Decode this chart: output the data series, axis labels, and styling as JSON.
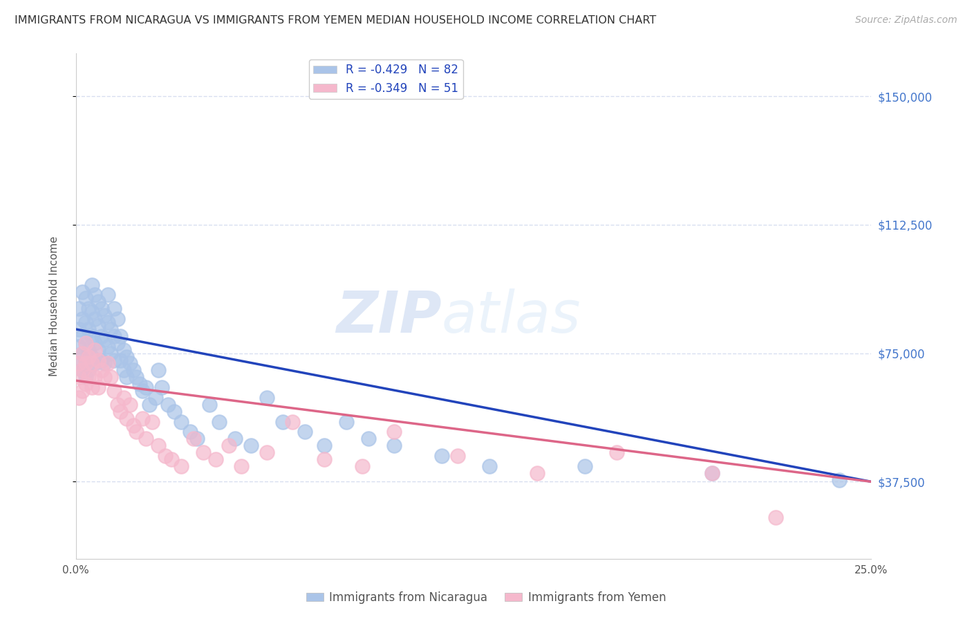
{
  "title": "IMMIGRANTS FROM NICARAGUA VS IMMIGRANTS FROM YEMEN MEDIAN HOUSEHOLD INCOME CORRELATION CHART",
  "source": "Source: ZipAtlas.com",
  "ylabel": "Median Household Income",
  "xlim": [
    0.0,
    0.25
  ],
  "ylim": [
    15000,
    162500
  ],
  "yticks": [
    37500,
    75000,
    112500,
    150000
  ],
  "ytick_labels": [
    "$37,500",
    "$75,000",
    "$112,500",
    "$150,000"
  ],
  "xticks": [
    0.0,
    0.05,
    0.1,
    0.15,
    0.2,
    0.25
  ],
  "xtick_labels": [
    "0.0%",
    "",
    "",
    "",
    "",
    "25.0%"
  ],
  "nicaragua_R": -0.429,
  "nicaragua_N": 82,
  "yemen_R": -0.349,
  "yemen_N": 51,
  "nicaragua_color": "#aac4e8",
  "yemen_color": "#f5b8cc",
  "nicaragua_line_color": "#2244bb",
  "yemen_line_color": "#dd6688",
  "nicaragua_line_x0": 0.0,
  "nicaragua_line_y0": 82000,
  "nicaragua_line_x1": 0.25,
  "nicaragua_line_y1": 37500,
  "yemen_line_x0": 0.0,
  "yemen_line_y0": 67000,
  "yemen_line_x1": 0.25,
  "yemen_line_y1": 37500,
  "nicaragua_x": [
    0.001,
    0.001,
    0.001,
    0.001,
    0.002,
    0.002,
    0.002,
    0.002,
    0.002,
    0.003,
    0.003,
    0.003,
    0.003,
    0.003,
    0.004,
    0.004,
    0.004,
    0.004,
    0.005,
    0.005,
    0.005,
    0.005,
    0.006,
    0.006,
    0.006,
    0.006,
    0.007,
    0.007,
    0.007,
    0.008,
    0.008,
    0.008,
    0.009,
    0.009,
    0.009,
    0.01,
    0.01,
    0.01,
    0.011,
    0.011,
    0.012,
    0.012,
    0.012,
    0.013,
    0.013,
    0.014,
    0.014,
    0.015,
    0.015,
    0.016,
    0.016,
    0.017,
    0.018,
    0.019,
    0.02,
    0.021,
    0.022,
    0.023,
    0.025,
    0.026,
    0.027,
    0.029,
    0.031,
    0.033,
    0.036,
    0.038,
    0.042,
    0.045,
    0.05,
    0.055,
    0.06,
    0.065,
    0.072,
    0.078,
    0.085,
    0.092,
    0.1,
    0.115,
    0.13,
    0.16,
    0.2,
    0.24
  ],
  "nicaragua_y": [
    88000,
    82000,
    77000,
    72000,
    93000,
    85000,
    80000,
    75000,
    70000,
    91000,
    84000,
    78000,
    73000,
    68000,
    88000,
    82000,
    76000,
    70000,
    95000,
    87000,
    80000,
    74000,
    92000,
    85000,
    78000,
    72000,
    90000,
    83000,
    76000,
    88000,
    80000,
    73000,
    86000,
    79000,
    72000,
    92000,
    84000,
    77000,
    82000,
    75000,
    88000,
    80000,
    73000,
    85000,
    78000,
    80000,
    73000,
    76000,
    70000,
    74000,
    68000,
    72000,
    70000,
    68000,
    66000,
    64000,
    65000,
    60000,
    62000,
    70000,
    65000,
    60000,
    58000,
    55000,
    52000,
    50000,
    60000,
    55000,
    50000,
    48000,
    62000,
    55000,
    52000,
    48000,
    55000,
    50000,
    48000,
    45000,
    42000,
    42000,
    40000,
    38000
  ],
  "yemen_x": [
    0.001,
    0.001,
    0.001,
    0.002,
    0.002,
    0.002,
    0.003,
    0.003,
    0.003,
    0.004,
    0.004,
    0.005,
    0.005,
    0.006,
    0.006,
    0.007,
    0.007,
    0.008,
    0.009,
    0.01,
    0.011,
    0.012,
    0.013,
    0.014,
    0.015,
    0.016,
    0.017,
    0.018,
    0.019,
    0.021,
    0.022,
    0.024,
    0.026,
    0.028,
    0.03,
    0.033,
    0.037,
    0.04,
    0.044,
    0.048,
    0.052,
    0.06,
    0.068,
    0.078,
    0.09,
    0.1,
    0.12,
    0.145,
    0.17,
    0.2,
    0.22
  ],
  "yemen_y": [
    72000,
    68000,
    62000,
    75000,
    70000,
    64000,
    78000,
    72000,
    66000,
    74000,
    68000,
    72000,
    65000,
    76000,
    68000,
    73000,
    65000,
    70000,
    68000,
    72000,
    68000,
    64000,
    60000,
    58000,
    62000,
    56000,
    60000,
    54000,
    52000,
    56000,
    50000,
    55000,
    48000,
    45000,
    44000,
    42000,
    50000,
    46000,
    44000,
    48000,
    42000,
    46000,
    55000,
    44000,
    42000,
    52000,
    45000,
    40000,
    46000,
    40000,
    27000
  ],
  "watermark_zip": "ZIP",
  "watermark_atlas": "atlas",
  "background_color": "#ffffff",
  "grid_color": "#d8dff0",
  "title_fontsize": 11.5,
  "tick_label_color_right": "#4477cc"
}
